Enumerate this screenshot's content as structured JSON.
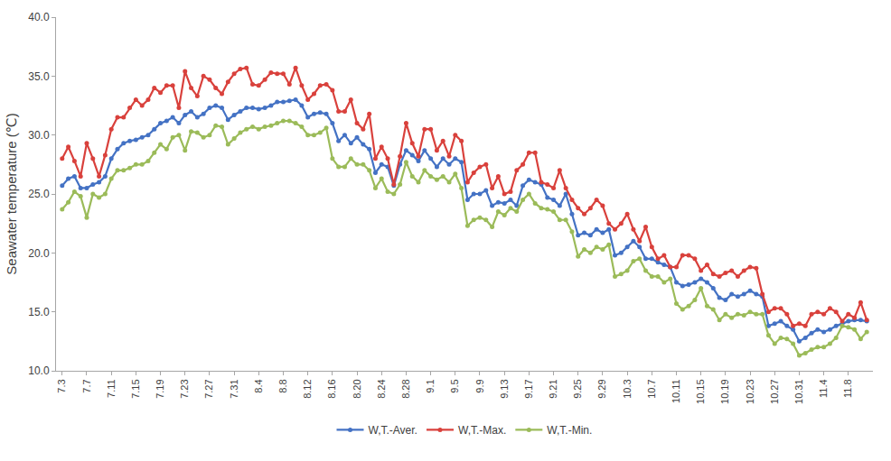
{
  "chart_data": {
    "type": "line",
    "y_label": "Seawater temperature (℃)",
    "categories": [
      "7.3",
      null,
      null,
      null,
      "7.7",
      null,
      null,
      null,
      "7.11",
      null,
      null,
      null,
      "7.15",
      null,
      null,
      null,
      "7.19",
      null,
      null,
      null,
      "7.23",
      null,
      null,
      null,
      "7.27",
      null,
      null,
      null,
      "7.31",
      null,
      null,
      null,
      "8.4",
      null,
      null,
      null,
      "8.8",
      null,
      null,
      null,
      "8.12",
      null,
      null,
      null,
      "8.16",
      null,
      null,
      null,
      "8.20",
      null,
      null,
      null,
      "8.24",
      null,
      null,
      null,
      "8.28",
      null,
      null,
      null,
      "9.1",
      null,
      null,
      null,
      "9.5",
      null,
      null,
      null,
      "9.9",
      null,
      null,
      null,
      "9.13",
      null,
      null,
      null,
      "9.17",
      null,
      null,
      null,
      "9.21",
      null,
      null,
      null,
      "9.25",
      null,
      null,
      null,
      "9.29",
      null,
      null,
      null,
      "10.3",
      null,
      null,
      null,
      "10.7",
      null,
      null,
      null,
      "10.11",
      null,
      null,
      null,
      "10.15",
      null,
      null,
      null,
      "10.19",
      null,
      null,
      null,
      "10.23",
      null,
      null,
      null,
      "10.27",
      null,
      null,
      null,
      "10.31",
      null,
      null,
      null,
      "11.4",
      null,
      null,
      null,
      "11.8",
      null,
      null,
      null
    ],
    "series": [
      {
        "name": "W,T.-Aver.",
        "color": "#4472C4",
        "marker": "circle",
        "line_style": "solid",
        "values": [
          25.7,
          26.3,
          26.5,
          25.5,
          25.5,
          25.8,
          26.0,
          26.5,
          28.0,
          28.8,
          29.3,
          29.5,
          29.6,
          29.8,
          30.0,
          30.5,
          31.0,
          31.2,
          31.5,
          31.0,
          31.7,
          32.0,
          31.5,
          31.8,
          32.3,
          32.5,
          32.3,
          31.3,
          31.7,
          32.0,
          32.3,
          32.3,
          32.2,
          32.3,
          32.5,
          32.8,
          32.8,
          32.9,
          33.0,
          32.5,
          31.5,
          31.8,
          31.9,
          31.8,
          31.0,
          29.5,
          30.0,
          29.3,
          29.8,
          29.2,
          28.8,
          26.8,
          27.5,
          27.3,
          25.7,
          27.5,
          28.7,
          28.3,
          27.8,
          28.7,
          28.0,
          27.3,
          28.0,
          27.5,
          28.0,
          27.7,
          24.5,
          25.0,
          25.0,
          25.3,
          24.0,
          24.3,
          24.2,
          24.5,
          24.0,
          25.7,
          26.2,
          26.0,
          25.8,
          24.7,
          24.5,
          24.0,
          25.0,
          23.3,
          21.5,
          21.7,
          21.5,
          22.0,
          21.7,
          22.0,
          19.8,
          20.0,
          20.5,
          21.0,
          20.5,
          19.5,
          19.5,
          19.2,
          19.0,
          18.8,
          17.5,
          17.2,
          17.3,
          17.5,
          17.8,
          17.5,
          17.0,
          16.2,
          16.0,
          16.5,
          16.3,
          16.5,
          16.8,
          16.5,
          16.3,
          13.8,
          14.0,
          14.2,
          13.8,
          13.5,
          12.5,
          12.8,
          13.2,
          13.5,
          13.3,
          13.5,
          13.8,
          14.0,
          14.2,
          14.3,
          14.3,
          14.2
        ]
      },
      {
        "name": "W,T.-Max.",
        "color": "#D9413C",
        "marker": "circle",
        "line_style": "solid",
        "values": [
          28.0,
          29.0,
          27.8,
          26.5,
          29.3,
          28.0,
          26.5,
          28.3,
          30.5,
          31.5,
          31.5,
          32.3,
          33.0,
          32.5,
          33.0,
          34.0,
          33.6,
          34.2,
          34.2,
          32.3,
          35.4,
          34.0,
          33.3,
          35.0,
          34.7,
          34.0,
          33.5,
          34.5,
          35.2,
          35.6,
          35.7,
          34.3,
          34.2,
          34.7,
          35.3,
          35.2,
          35.2,
          34.3,
          35.7,
          34.2,
          33.0,
          33.5,
          34.2,
          34.3,
          33.8,
          32.0,
          32.0,
          33.0,
          31.0,
          30.5,
          31.8,
          28.0,
          29.0,
          28.0,
          25.8,
          28.2,
          31.0,
          29.3,
          28.2,
          30.5,
          30.5,
          28.7,
          29.5,
          28.2,
          30.0,
          29.5,
          26.0,
          26.8,
          27.3,
          27.5,
          25.5,
          26.5,
          25.0,
          25.2,
          27.0,
          27.5,
          28.5,
          28.5,
          26.0,
          25.8,
          25.5,
          27.0,
          25.5,
          24.5,
          23.8,
          23.3,
          23.8,
          24.5,
          24.0,
          22.5,
          22.0,
          22.5,
          23.3,
          22.0,
          21.0,
          22.2,
          20.5,
          19.5,
          19.8,
          18.8,
          18.8,
          19.8,
          19.8,
          19.5,
          18.5,
          19.0,
          18.2,
          18.0,
          18.3,
          18.5,
          18.0,
          18.5,
          18.8,
          18.7,
          16.5,
          15.0,
          15.3,
          15.3,
          14.8,
          13.8,
          14.0,
          13.8,
          14.8,
          15.0,
          14.8,
          15.3,
          15.0,
          14.2,
          14.8,
          14.5,
          15.8,
          14.3
        ]
      },
      {
        "name": "W,T.-Min.",
        "color": "#9BBB59",
        "marker": "circle",
        "line_style": "solid",
        "values": [
          23.7,
          24.3,
          25.2,
          24.8,
          23.0,
          25.0,
          24.7,
          25.0,
          26.3,
          27.0,
          27.0,
          27.2,
          27.5,
          27.5,
          27.8,
          28.5,
          29.2,
          28.8,
          29.8,
          30.0,
          28.7,
          30.3,
          30.2,
          29.8,
          30.0,
          30.8,
          30.7,
          29.2,
          29.7,
          30.2,
          30.5,
          30.7,
          30.5,
          30.7,
          30.8,
          31.0,
          31.2,
          31.2,
          31.0,
          30.7,
          30.0,
          30.0,
          30.2,
          30.6,
          28.0,
          27.3,
          27.3,
          28.0,
          27.5,
          27.5,
          27.0,
          25.5,
          26.3,
          25.2,
          25.0,
          25.8,
          27.7,
          26.5,
          26.0,
          27.0,
          26.5,
          26.2,
          26.5,
          26.0,
          26.7,
          25.5,
          22.3,
          22.8,
          23.0,
          22.8,
          22.2,
          23.5,
          23.2,
          23.8,
          23.5,
          24.5,
          25.0,
          24.2,
          23.8,
          23.7,
          23.5,
          22.8,
          22.8,
          21.8,
          19.7,
          20.3,
          20.0,
          20.5,
          20.3,
          20.7,
          18.0,
          18.2,
          18.5,
          19.3,
          19.5,
          18.5,
          18.0,
          18.0,
          17.5,
          17.8,
          15.7,
          15.2,
          15.5,
          16.0,
          17.0,
          15.5,
          15.2,
          14.3,
          14.8,
          14.5,
          14.8,
          14.7,
          15.0,
          14.8,
          14.8,
          13.0,
          12.3,
          12.8,
          12.7,
          12.3,
          11.3,
          11.5,
          11.8,
          12.0,
          12.0,
          12.3,
          12.8,
          13.8,
          13.7,
          13.5,
          12.7,
          13.3
        ]
      }
    ],
    "ylim": [
      10,
      40
    ],
    "yticks": [
      {
        "value": 10,
        "label": "10.0"
      },
      {
        "value": 15,
        "label": "15.0"
      },
      {
        "value": 20,
        "label": "20.0"
      },
      {
        "value": 25,
        "label": "25.0"
      },
      {
        "value": 30,
        "label": "30.0"
      },
      {
        "value": 35,
        "label": "35.0"
      },
      {
        "value": 40,
        "label": "40.0"
      }
    ],
    "grid": false,
    "legend": "bottom"
  }
}
